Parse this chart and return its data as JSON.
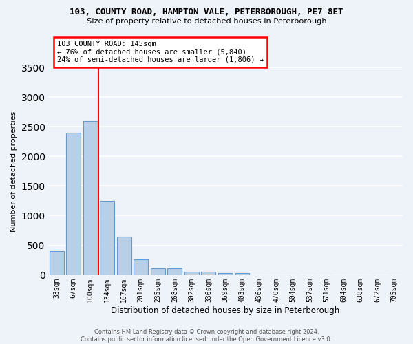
{
  "title1": "103, COUNTY ROAD, HAMPTON VALE, PETERBOROUGH, PE7 8ET",
  "title2": "Size of property relative to detached houses in Peterborough",
  "xlabel": "Distribution of detached houses by size in Peterborough",
  "ylabel": "Number of detached properties",
  "categories": [
    "33sqm",
    "67sqm",
    "100sqm",
    "134sqm",
    "167sqm",
    "201sqm",
    "235sqm",
    "268sqm",
    "302sqm",
    "336sqm",
    "369sqm",
    "403sqm",
    "436sqm",
    "470sqm",
    "504sqm",
    "537sqm",
    "571sqm",
    "604sqm",
    "638sqm",
    "672sqm",
    "705sqm"
  ],
  "values": [
    400,
    2400,
    2600,
    1250,
    640,
    260,
    105,
    105,
    55,
    55,
    35,
    35,
    0,
    0,
    0,
    0,
    0,
    0,
    0,
    0,
    0
  ],
  "bar_color": "#b8cfe8",
  "bar_edgecolor": "#6699cc",
  "bg_color": "#eef2f9",
  "grid_color": "#ffffff",
  "property_line_bar_index": 2,
  "annotation_line1": "103 COUNTY ROAD: 145sqm",
  "annotation_line2": "← 76% of detached houses are smaller (5,840)",
  "annotation_line3": "24% of semi-detached houses are larger (1,806) →",
  "ylim": [
    0,
    3500
  ],
  "yticks": [
    0,
    500,
    1000,
    1500,
    2000,
    2500,
    3000,
    3500
  ],
  "footer1": "Contains HM Land Registry data © Crown copyright and database right 2024.",
  "footer2": "Contains public sector information licensed under the Open Government Licence v3.0."
}
